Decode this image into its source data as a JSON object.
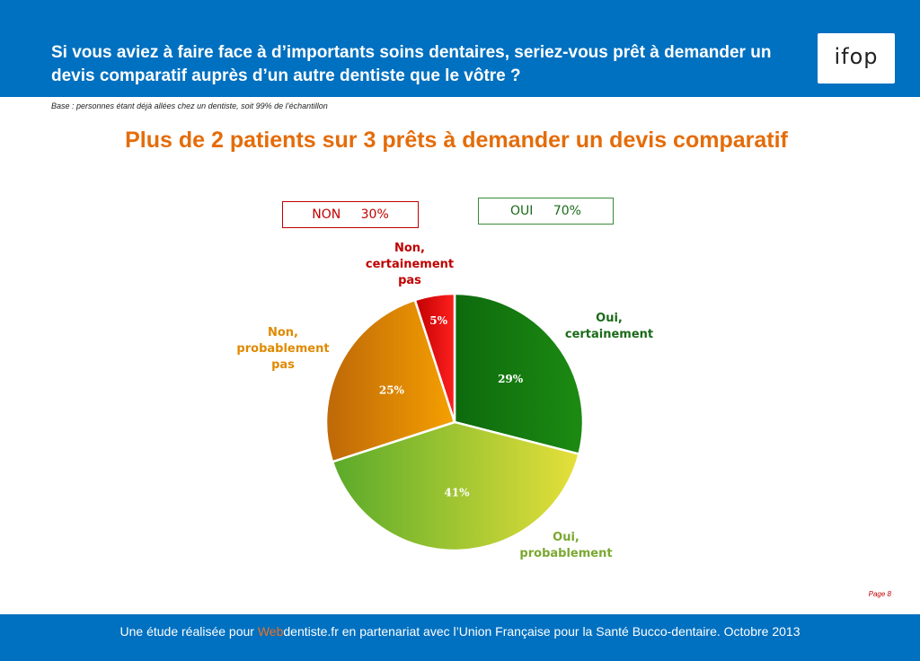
{
  "header": {
    "question": "Si vous aviez à faire face à d’importants soins dentaires, seriez-vous prêt à demander un devis comparatif auprès d’un autre dentiste que le vôtre ?",
    "logo_text": "ifop"
  },
  "base_note": "Base : personnes étant déjà allées chez un dentiste, soit 99% de l’échantillon",
  "headline": "Plus de 2 patients sur 3 prêts à demander un devis comparatif",
  "summary": {
    "non_label": "NON",
    "non_value": "30%",
    "oui_label": "OUI",
    "oui_value": "70%",
    "non_color": "#c00000",
    "oui_color": "#3a8a3a"
  },
  "chart_data": {
    "type": "pie",
    "title": "",
    "slices": [
      {
        "label": "Oui, certainement",
        "value": 29,
        "display": "29%",
        "color_start": "#0d6a0d",
        "color_end": "#1c8a12"
      },
      {
        "label": "Oui, probablement",
        "value": 41,
        "display": "41%",
        "color_start": "#5aaa2a",
        "color_end": "#e6e03a"
      },
      {
        "label": "Non, probablement pas",
        "value": 25,
        "display": "25%",
        "color_start": "#c06a08",
        "color_end": "#f5a000"
      },
      {
        "label": "Non, certainement pas",
        "value": 5,
        "display": "5%",
        "color_start": "#c00000",
        "color_end": "#ff2020"
      }
    ],
    "start": "12 o'clock",
    "direction": "clockwise"
  },
  "labels": {
    "oui_cert": "Oui, certainement",
    "oui_prob": "Oui, probablement",
    "non_prob": "Non, probablement pas",
    "non_cert": "Non, certainement pas"
  },
  "footer": {
    "prefix": "Une étude réalisée pour ",
    "brand_a": "Web",
    "brand_b": "dentiste.fr",
    "suffix": " en partenariat avec l’Union Française pour la Santé Bucco-dentaire. Octobre 2013"
  },
  "page_number": "Page 8",
  "colors": {
    "header_bg": "#0070c0",
    "headline": "#e46c0a"
  }
}
